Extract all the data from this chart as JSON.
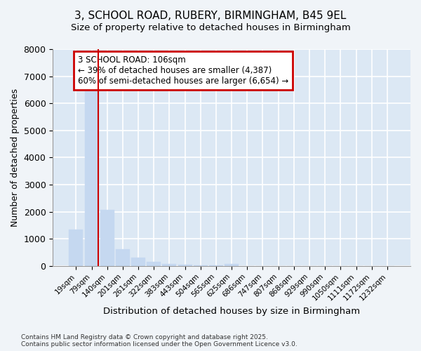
{
  "title_line1": "3, SCHOOL ROAD, RUBERY, BIRMINGHAM, B45 9EL",
  "title_line2": "Size of property relative to detached houses in Birmingham",
  "xlabel": "Distribution of detached houses by size in Birmingham",
  "ylabel": "Number of detached properties",
  "categories": [
    "19sqm",
    "79sqm",
    "140sqm",
    "201sqm",
    "261sqm",
    "322sqm",
    "383sqm",
    "443sqm",
    "504sqm",
    "565sqm",
    "625sqm",
    "686sqm",
    "747sqm",
    "807sqm",
    "868sqm",
    "929sqm",
    "990sqm",
    "1050sqm",
    "1111sqm",
    "1172sqm",
    "1232sqm"
  ],
  "values": [
    1350,
    6650,
    2080,
    620,
    300,
    150,
    80,
    40,
    20,
    10,
    80,
    0,
    0,
    0,
    0,
    0,
    0,
    0,
    0,
    0,
    0
  ],
  "bar_color": "#c5d8f0",
  "bar_edge_color": "#c5d8f0",
  "grid_color": "#c8d4e0",
  "property_line_color": "#cc0000",
  "annotation_text": "3 SCHOOL ROAD: 106sqm\n← 39% of detached houses are smaller (4,387)\n60% of semi-detached houses are larger (6,654) →",
  "annotation_box_color": "#cc0000",
  "ylim": [
    0,
    8000
  ],
  "yticks": [
    0,
    1000,
    2000,
    3000,
    4000,
    5000,
    6000,
    7000,
    8000
  ],
  "footer_line1": "Contains HM Land Registry data © Crown copyright and database right 2025.",
  "footer_line2": "Contains public sector information licensed under the Open Government Licence v3.0.",
  "bg_color": "#f0f4f8",
  "plot_bg_color": "#dce8f4"
}
